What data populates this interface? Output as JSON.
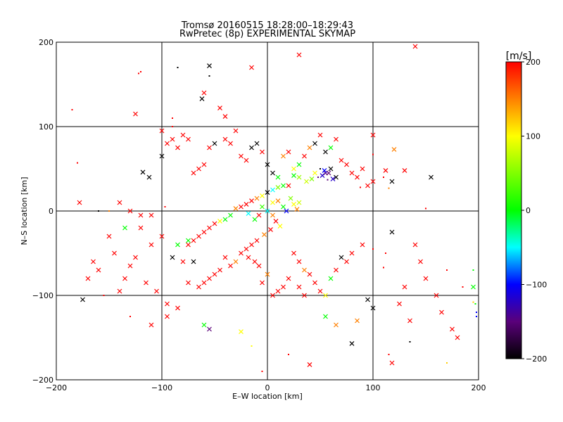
{
  "chart_data": {
    "type": "scatter",
    "title": "Tromsø 20160515 18:28:00–18:29:43",
    "subtitle": "RwPretec (8p) EXPERIMENTAL SKYMAP",
    "xlabel": "E–W location [km]",
    "ylabel": "N–S location [km]",
    "xlim": [
      -200,
      200
    ],
    "ylim": [
      -200,
      200
    ],
    "xticks": [
      -200,
      -100,
      0,
      100,
      200
    ],
    "yticks": [
      -200,
      -100,
      0,
      100,
      200
    ],
    "grid": true,
    "colorbar": {
      "label": "[m/s]",
      "min": -200,
      "max": 200,
      "ticks": [
        200,
        100,
        0,
        -100,
        -200
      ],
      "placement": "right"
    },
    "markers": [
      "dot",
      "x"
    ],
    "points": [
      [
        -85,
        170,
        -200,
        0
      ],
      [
        -55,
        172,
        -200,
        1
      ],
      [
        -15,
        170,
        200,
        1
      ],
      [
        30,
        185,
        200,
        1
      ],
      [
        140,
        195,
        200,
        1
      ],
      [
        -120,
        165,
        200,
        0
      ],
      [
        -122,
        163,
        200,
        0
      ],
      [
        -45,
        122,
        200,
        1
      ],
      [
        -55,
        160,
        -200,
        0
      ],
      [
        -62,
        133,
        -200,
        1
      ],
      [
        -125,
        115,
        200,
        1
      ],
      [
        -60,
        140,
        200,
        1
      ],
      [
        -40,
        112,
        200,
        1
      ],
      [
        -90,
        110,
        200,
        0
      ],
      [
        -185,
        120,
        200,
        0
      ],
      [
        -180,
        57,
        200,
        0
      ],
      [
        -178,
        10,
        200,
        1
      ],
      [
        -140,
        10,
        200,
        1
      ],
      [
        -100,
        65,
        -200,
        1
      ],
      [
        -118,
        46,
        -200,
        1
      ],
      [
        -112,
        40,
        -200,
        1
      ],
      [
        -97,
        5,
        200,
        0
      ],
      [
        -120,
        -5,
        200,
        1
      ],
      [
        -130,
        0,
        200,
        1
      ],
      [
        -110,
        -5,
        200,
        1
      ],
      [
        -160,
        0,
        -200,
        0
      ],
      [
        -150,
        0,
        150,
        0
      ],
      [
        -135,
        -20,
        0,
        1
      ],
      [
        -175,
        -105,
        -200,
        1
      ],
      [
        -155,
        -100,
        200,
        0
      ],
      [
        -130,
        -125,
        200,
        0
      ],
      [
        -110,
        -135,
        200,
        1
      ],
      [
        -95,
        -125,
        200,
        1
      ],
      [
        -60,
        -135,
        0,
        1
      ],
      [
        -55,
        -140,
        -150,
        1
      ],
      [
        -25,
        -143,
        100,
        1
      ],
      [
        -15,
        -160,
        100,
        0
      ],
      [
        -5,
        -190,
        200,
        0
      ],
      [
        20,
        -170,
        200,
        0
      ],
      [
        40,
        -182,
        200,
        1
      ],
      [
        55,
        -125,
        0,
        1
      ],
      [
        65,
        -135,
        150,
        1
      ],
      [
        80,
        -157,
        -200,
        1
      ],
      [
        85,
        -130,
        150,
        1
      ],
      [
        95,
        -105,
        -200,
        1
      ],
      [
        100,
        -115,
        -200,
        1
      ],
      [
        115,
        -170,
        200,
        0
      ],
      [
        118,
        -180,
        200,
        1
      ],
      [
        135,
        -155,
        -200,
        0
      ],
      [
        170,
        -180,
        120,
        0
      ],
      [
        195,
        -108,
        120,
        0
      ],
      [
        197,
        -110,
        0,
        0
      ],
      [
        195,
        -90,
        0,
        1
      ],
      [
        198,
        -125,
        -100,
        0
      ],
      [
        198,
        -120,
        -100,
        0
      ],
      [
        185,
        -90,
        200,
        0
      ],
      [
        170,
        -70,
        200,
        0
      ],
      [
        195,
        -70,
        0,
        0
      ],
      [
        150,
        3,
        200,
        0
      ],
      [
        155,
        40,
        -200,
        1
      ],
      [
        118,
        35,
        -200,
        1
      ],
      [
        115,
        27,
        150,
        0
      ],
      [
        130,
        48,
        200,
        1
      ],
      [
        112,
        48,
        200,
        1
      ],
      [
        110,
        40,
        200,
        0
      ],
      [
        100,
        35,
        200,
        1
      ],
      [
        100,
        90,
        200,
        1
      ],
      [
        100,
        67,
        200,
        0
      ],
      [
        120,
        73,
        150,
        1
      ],
      [
        118,
        -25,
        -200,
        1
      ],
      [
        112,
        -50,
        200,
        0
      ],
      [
        110,
        -67,
        200,
        0
      ],
      [
        100,
        -45,
        200,
        0
      ],
      [
        90,
        -40,
        200,
        1
      ],
      [
        88,
        28,
        200,
        0
      ],
      [
        65,
        40,
        -200,
        1
      ],
      [
        60,
        50,
        -200,
        1
      ],
      [
        55,
        45,
        -150,
        1
      ],
      [
        58,
        45,
        -150,
        1
      ],
      [
        52,
        42,
        -120,
        1
      ],
      [
        62,
        38,
        -120,
        1
      ],
      [
        48,
        40,
        -150,
        0
      ],
      [
        57,
        37,
        -150,
        0
      ],
      [
        54,
        48,
        -100,
        1
      ],
      [
        50,
        50,
        -200,
        0
      ],
      [
        45,
        45,
        100,
        1
      ],
      [
        42,
        38,
        50,
        1
      ],
      [
        37,
        35,
        80,
        1
      ],
      [
        30,
        40,
        60,
        1
      ],
      [
        25,
        42,
        0,
        1
      ],
      [
        20,
        30,
        200,
        1
      ],
      [
        15,
        30,
        0,
        1
      ],
      [
        10,
        28,
        50,
        1
      ],
      [
        5,
        25,
        -50,
        1
      ],
      [
        0,
        22,
        -200,
        1
      ],
      [
        -5,
        18,
        100,
        1
      ],
      [
        -10,
        15,
        150,
        1
      ],
      [
        -15,
        12,
        200,
        1
      ],
      [
        -20,
        8,
        200,
        1
      ],
      [
        -25,
        5,
        200,
        1
      ],
      [
        -30,
        3,
        150,
        1
      ],
      [
        -35,
        -5,
        0,
        1
      ],
      [
        -40,
        -10,
        0,
        1
      ],
      [
        -45,
        -12,
        100,
        1
      ],
      [
        -50,
        -15,
        200,
        1
      ],
      [
        -55,
        -20,
        200,
        1
      ],
      [
        -60,
        -25,
        200,
        1
      ],
      [
        -65,
        -30,
        200,
        1
      ],
      [
        -70,
        -35,
        200,
        1
      ],
      [
        -75,
        -40,
        200,
        1
      ],
      [
        5,
        10,
        100,
        1
      ],
      [
        10,
        12,
        150,
        1
      ],
      [
        15,
        5,
        0,
        1
      ],
      [
        18,
        0,
        -100,
        1
      ],
      [
        22,
        15,
        50,
        1
      ],
      [
        25,
        8,
        100,
        1
      ],
      [
        28,
        2,
        150,
        1
      ],
      [
        30,
        10,
        80,
        1
      ],
      [
        -5,
        5,
        20,
        1
      ],
      [
        0,
        0,
        -50,
        1
      ],
      [
        -8,
        -5,
        200,
        1
      ],
      [
        -12,
        -10,
        0,
        1
      ],
      [
        -18,
        -3,
        -50,
        1
      ],
      [
        5,
        -5,
        150,
        1
      ],
      [
        8,
        -12,
        200,
        1
      ],
      [
        12,
        -18,
        100,
        1
      ],
      [
        3,
        -22,
        200,
        1
      ],
      [
        -3,
        -28,
        150,
        1
      ],
      [
        -10,
        -35,
        200,
        1
      ],
      [
        -15,
        -40,
        200,
        1
      ],
      [
        -20,
        -45,
        200,
        1
      ],
      [
        -25,
        -50,
        200,
        1
      ],
      [
        -18,
        -55,
        200,
        1
      ],
      [
        -12,
        -60,
        200,
        1
      ],
      [
        -8,
        -65,
        200,
        1
      ],
      [
        -30,
        -60,
        150,
        1
      ],
      [
        -35,
        -65,
        200,
        1
      ],
      [
        -40,
        -55,
        200,
        1
      ],
      [
        -45,
        -70,
        200,
        1
      ],
      [
        -50,
        -75,
        200,
        1
      ],
      [
        -55,
        -80,
        200,
        1
      ],
      [
        -60,
        -85,
        200,
        1
      ],
      [
        -65,
        -90,
        200,
        1
      ],
      [
        -70,
        -60,
        -200,
        1
      ],
      [
        -75,
        -35,
        0,
        1
      ],
      [
        25,
        -50,
        200,
        1
      ],
      [
        30,
        -60,
        200,
        1
      ],
      [
        35,
        -70,
        150,
        1
      ],
      [
        40,
        -75,
        200,
        1
      ],
      [
        45,
        -85,
        200,
        1
      ],
      [
        50,
        -95,
        200,
        1
      ],
      [
        55,
        -100,
        100,
        1
      ],
      [
        60,
        -80,
        0,
        1
      ],
      [
        65,
        -70,
        200,
        1
      ],
      [
        70,
        -55,
        -200,
        1
      ],
      [
        75,
        -60,
        200,
        1
      ],
      [
        80,
        -50,
        200,
        1
      ],
      [
        20,
        -80,
        200,
        1
      ],
      [
        15,
        -90,
        200,
        1
      ],
      [
        10,
        -95,
        200,
        1
      ],
      [
        5,
        -100,
        200,
        1
      ],
      [
        -5,
        -85,
        200,
        1
      ],
      [
        0,
        -75,
        150,
        1
      ],
      [
        30,
        -90,
        200,
        1
      ],
      [
        35,
        -100,
        200,
        1
      ],
      [
        -80,
        90,
        200,
        1
      ],
      [
        -90,
        85,
        200,
        1
      ],
      [
        -95,
        80,
        200,
        1
      ],
      [
        -85,
        75,
        200,
        1
      ],
      [
        -100,
        95,
        200,
        1
      ],
      [
        -75,
        85,
        200,
        1
      ],
      [
        -90,
        100,
        200,
        0
      ],
      [
        -60,
        55,
        200,
        1
      ],
      [
        -65,
        50,
        200,
        1
      ],
      [
        -70,
        45,
        200,
        1
      ],
      [
        -40,
        85,
        200,
        1
      ],
      [
        -35,
        80,
        200,
        1
      ],
      [
        -30,
        95,
        200,
        1
      ],
      [
        -20,
        60,
        200,
        1
      ],
      [
        -25,
        65,
        200,
        1
      ],
      [
        -15,
        75,
        -200,
        1
      ],
      [
        -10,
        80,
        -200,
        1
      ],
      [
        -5,
        70,
        200,
        1
      ],
      [
        0,
        55,
        -200,
        1
      ],
      [
        5,
        45,
        -200,
        1
      ],
      [
        10,
        40,
        0,
        1
      ],
      [
        15,
        65,
        150,
        1
      ],
      [
        20,
        70,
        200,
        1
      ],
      [
        25,
        50,
        100,
        1
      ],
      [
        30,
        55,
        0,
        1
      ],
      [
        35,
        65,
        200,
        1
      ],
      [
        40,
        75,
        150,
        1
      ],
      [
        45,
        80,
        -200,
        1
      ],
      [
        50,
        90,
        200,
        1
      ],
      [
        55,
        70,
        -200,
        1
      ],
      [
        60,
        75,
        0,
        1
      ],
      [
        65,
        85,
        200,
        1
      ],
      [
        70,
        60,
        200,
        1
      ],
      [
        75,
        55,
        200,
        1
      ],
      [
        80,
        45,
        200,
        1
      ],
      [
        85,
        40,
        200,
        1
      ],
      [
        90,
        50,
        200,
        1
      ],
      [
        95,
        30,
        200,
        1
      ],
      [
        -50,
        80,
        -200,
        1
      ],
      [
        -55,
        75,
        200,
        1
      ],
      [
        -100,
        -30,
        200,
        1
      ],
      [
        -110,
        -40,
        200,
        1
      ],
      [
        -120,
        -20,
        200,
        1
      ],
      [
        -125,
        -55,
        200,
        1
      ],
      [
        -130,
        -65,
        200,
        1
      ],
      [
        -135,
        -80,
        200,
        1
      ],
      [
        -140,
        -95,
        200,
        1
      ],
      [
        -145,
        -50,
        200,
        1
      ],
      [
        -150,
        -30,
        200,
        1
      ],
      [
        -160,
        -70,
        200,
        1
      ],
      [
        -165,
        -60,
        200,
        1
      ],
      [
        -170,
        -80,
        200,
        1
      ],
      [
        -115,
        -85,
        200,
        1
      ],
      [
        -105,
        -95,
        200,
        1
      ],
      [
        -95,
        -110,
        200,
        1
      ],
      [
        -85,
        -115,
        200,
        1
      ],
      [
        -80,
        -60,
        200,
        1
      ],
      [
        -75,
        -85,
        200,
        1
      ],
      [
        -90,
        -55,
        -200,
        1
      ],
      [
        -85,
        -40,
        0,
        1
      ],
      [
        140,
        -40,
        200,
        1
      ],
      [
        145,
        -60,
        200,
        1
      ],
      [
        150,
        -80,
        200,
        1
      ],
      [
        130,
        -90,
        200,
        1
      ],
      [
        125,
        -110,
        200,
        1
      ],
      [
        135,
        -130,
        200,
        1
      ],
      [
        160,
        -100,
        200,
        1
      ],
      [
        165,
        -120,
        200,
        1
      ],
      [
        175,
        -140,
        200,
        1
      ],
      [
        180,
        -150,
        200,
        1
      ]
    ]
  }
}
